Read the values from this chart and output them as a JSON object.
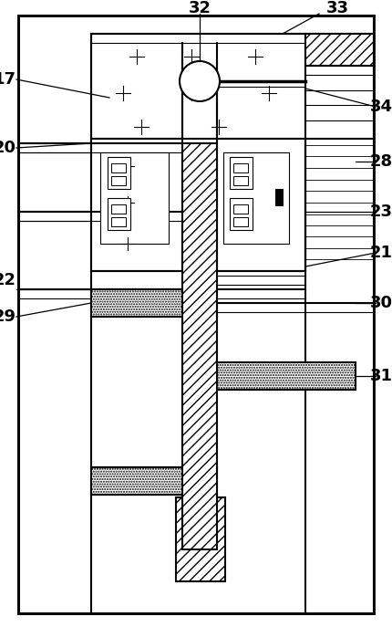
{
  "bg_color": "#ffffff",
  "line_color": "#000000",
  "figsize": [
    4.3,
    6.87
  ],
  "dpi": 100,
  "label_fontsize": 13
}
